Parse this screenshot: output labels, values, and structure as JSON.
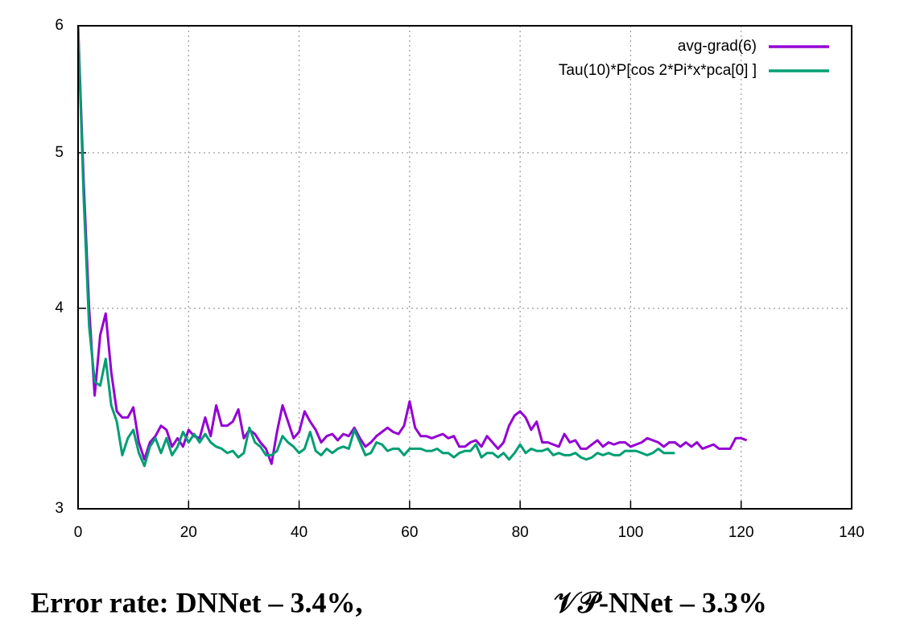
{
  "chart_data": {
    "type": "line",
    "xlim": [
      0,
      140
    ],
    "xticks": [
      0,
      20,
      40,
      60,
      80,
      100,
      120,
      140
    ],
    "ylim": [
      3,
      6
    ],
    "yticks": [
      3,
      4,
      5,
      6
    ],
    "log_y": true,
    "grid": true,
    "legend": "top-right",
    "caption": [
      "Error rate: DNNet – 3.4%,",
      "𝒱𝒫-NNet – 3.3%"
    ],
    "series": [
      {
        "name": "avg-grad(6)",
        "color": "#9400d3",
        "x": [
          0,
          1,
          2,
          3,
          4,
          5,
          6,
          7,
          8,
          9,
          10,
          11,
          12,
          13,
          14,
          15,
          16,
          17,
          18,
          19,
          20,
          21,
          22,
          23,
          24,
          25,
          26,
          27,
          28,
          29,
          30,
          31,
          32,
          33,
          34,
          35,
          36,
          37,
          38,
          39,
          40,
          41,
          42,
          43,
          44,
          45,
          46,
          47,
          48,
          49,
          50,
          51,
          52,
          53,
          54,
          55,
          56,
          57,
          58,
          59,
          60,
          61,
          62,
          63,
          64,
          65,
          66,
          67,
          68,
          69,
          70,
          71,
          72,
          73,
          74,
          75,
          76,
          77,
          78,
          79,
          80,
          81,
          82,
          83,
          84,
          85,
          86,
          87,
          88,
          89,
          90,
          91,
          92,
          93,
          94,
          95,
          96,
          97,
          98,
          99,
          100,
          101,
          102,
          103,
          104,
          105,
          106,
          107,
          108,
          109,
          110,
          111,
          112,
          113,
          114,
          115,
          116,
          117,
          118,
          119,
          120,
          121
        ],
        "values": [
          6,
          4.8,
          4.0,
          3.53,
          3.85,
          3.97,
          3.65,
          3.45,
          3.42,
          3.42,
          3.47,
          3.3,
          3.22,
          3.3,
          3.33,
          3.38,
          3.36,
          3.28,
          3.32,
          3.28,
          3.36,
          3.33,
          3.32,
          3.42,
          3.33,
          3.48,
          3.38,
          3.38,
          3.4,
          3.46,
          3.32,
          3.36,
          3.34,
          3.3,
          3.27,
          3.2,
          3.35,
          3.48,
          3.4,
          3.32,
          3.35,
          3.45,
          3.4,
          3.36,
          3.3,
          3.33,
          3.34,
          3.31,
          3.34,
          3.33,
          3.37,
          3.32,
          3.28,
          3.3,
          3.33,
          3.35,
          3.37,
          3.35,
          3.34,
          3.38,
          3.5,
          3.37,
          3.33,
          3.33,
          3.32,
          3.33,
          3.34,
          3.32,
          3.33,
          3.28,
          3.28,
          3.3,
          3.31,
          3.28,
          3.33,
          3.3,
          3.27,
          3.3,
          3.38,
          3.43,
          3.45,
          3.42,
          3.36,
          3.4,
          3.3,
          3.3,
          3.29,
          3.28,
          3.34,
          3.3,
          3.31,
          3.27,
          3.27,
          3.29,
          3.31,
          3.28,
          3.3,
          3.29,
          3.3,
          3.3,
          3.28,
          3.29,
          3.3,
          3.32,
          3.31,
          3.3,
          3.28,
          3.3,
          3.3,
          3.28,
          3.3,
          3.28,
          3.3,
          3.27,
          3.28,
          3.29,
          3.27,
          3.27,
          3.27,
          3.32,
          3.32,
          3.31
        ]
      },
      {
        "name": "Tau(10)*P[cos 2*Pi*x*pca[0] ]",
        "color": "#009e73",
        "x": [
          0,
          1,
          2,
          3,
          4,
          5,
          6,
          7,
          8,
          9,
          10,
          11,
          12,
          13,
          14,
          15,
          16,
          17,
          18,
          19,
          20,
          21,
          22,
          23,
          24,
          25,
          26,
          27,
          28,
          29,
          30,
          31,
          32,
          33,
          34,
          35,
          36,
          37,
          38,
          39,
          40,
          41,
          42,
          43,
          44,
          45,
          46,
          47,
          48,
          49,
          50,
          51,
          52,
          53,
          54,
          55,
          56,
          57,
          58,
          59,
          60,
          61,
          62,
          63,
          64,
          65,
          66,
          67,
          68,
          69,
          70,
          71,
          72,
          73,
          74,
          75,
          76,
          77,
          78,
          79,
          80,
          81,
          82,
          83,
          84,
          85,
          86,
          87,
          88,
          89,
          90,
          91,
          92,
          93,
          94,
          95,
          96,
          97,
          98,
          99,
          100,
          101,
          102,
          103,
          104,
          105,
          106,
          107,
          108
        ],
        "values": [
          6,
          4.7,
          3.9,
          3.6,
          3.58,
          3.72,
          3.48,
          3.4,
          3.24,
          3.32,
          3.36,
          3.25,
          3.19,
          3.28,
          3.32,
          3.25,
          3.32,
          3.24,
          3.28,
          3.35,
          3.3,
          3.34,
          3.3,
          3.34,
          3.3,
          3.28,
          3.27,
          3.25,
          3.26,
          3.23,
          3.25,
          3.37,
          3.3,
          3.28,
          3.24,
          3.24,
          3.26,
          3.33,
          3.3,
          3.28,
          3.25,
          3.27,
          3.35,
          3.26,
          3.24,
          3.27,
          3.25,
          3.27,
          3.28,
          3.27,
          3.36,
          3.3,
          3.24,
          3.25,
          3.3,
          3.29,
          3.26,
          3.27,
          3.27,
          3.24,
          3.27,
          3.27,
          3.27,
          3.26,
          3.26,
          3.27,
          3.25,
          3.25,
          3.23,
          3.25,
          3.26,
          3.26,
          3.29,
          3.23,
          3.25,
          3.25,
          3.23,
          3.25,
          3.22,
          3.25,
          3.29,
          3.25,
          3.27,
          3.26,
          3.26,
          3.27,
          3.24,
          3.25,
          3.24,
          3.24,
          3.25,
          3.23,
          3.22,
          3.23,
          3.25,
          3.24,
          3.25,
          3.24,
          3.24,
          3.26,
          3.26,
          3.26,
          3.25,
          3.24,
          3.25,
          3.27,
          3.25,
          3.25,
          3.25
        ]
      }
    ]
  }
}
